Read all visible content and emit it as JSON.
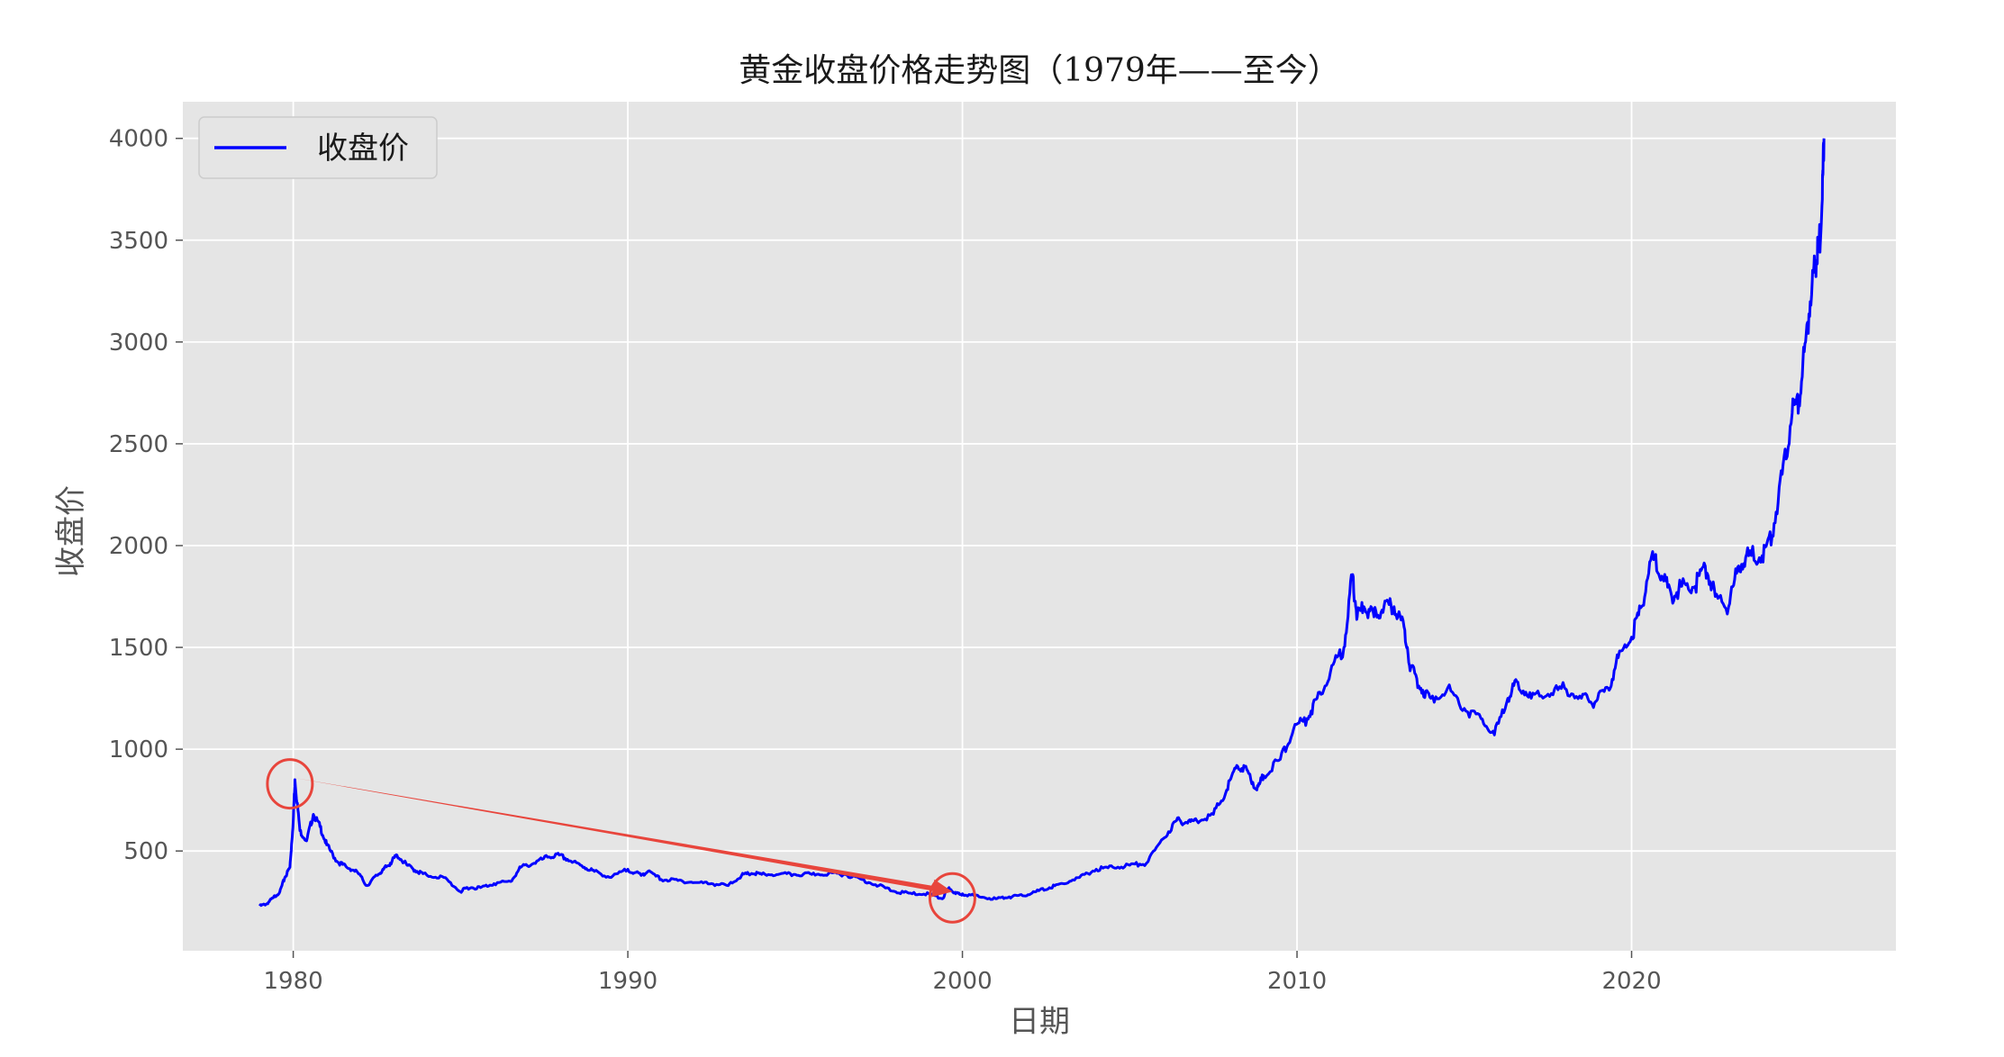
{
  "chart_data": {
    "type": "line",
    "title": "黄金收盘价格走势图（1979年——至今）",
    "xlabel": "日期",
    "ylabel": "收盘价",
    "xlim": [
      1976.7,
      2027.9
    ],
    "ylim": [
      10,
      4180
    ],
    "x_ticks": [
      1980,
      1990,
      2000,
      2010,
      2020
    ],
    "x_tick_labels": [
      "1980",
      "1990",
      "2000",
      "2010",
      "2020"
    ],
    "y_ticks": [
      500,
      1000,
      1500,
      2000,
      2500,
      3000,
      3500,
      4000
    ],
    "y_tick_labels": [
      "500",
      "1000",
      "1500",
      "2000",
      "2500",
      "3000",
      "3500",
      "4000"
    ],
    "grid": true,
    "legend": {
      "placement": "top-left",
      "entries": [
        "收盘价"
      ]
    },
    "colors": {
      "line": "#0000ff",
      "annotation": "#e8453c",
      "plot_bg": "#e5e5e5",
      "grid": "#ffffff"
    },
    "series": [
      {
        "name": "收盘价",
        "x": [
          1979.0,
          1979.2,
          1979.4,
          1979.6,
          1979.75,
          1979.9,
          1980.0,
          1980.05,
          1980.2,
          1980.4,
          1980.6,
          1980.8,
          1981.0,
          1981.3,
          1981.6,
          1981.9,
          1982.2,
          1982.5,
          1982.7,
          1982.9,
          1983.1,
          1983.4,
          1983.7,
          1984.0,
          1984.5,
          1985.0,
          1985.2,
          1985.6,
          1986.0,
          1986.5,
          1986.8,
          1987.2,
          1987.6,
          1987.95,
          1988.3,
          1988.7,
          1989.0,
          1989.5,
          1990.0,
          1990.4,
          1990.6,
          1991.0,
          1991.5,
          1992.0,
          1992.5,
          1993.0,
          1993.4,
          1993.7,
          1994.0,
          1994.5,
          1995.0,
          1995.5,
          1996.0,
          1996.5,
          1997.0,
          1997.5,
          1998.0,
          1998.5,
          1999.0,
          1999.4,
          1999.6,
          1999.8,
          2000.0,
          2000.5,
          2001.0,
          2001.4,
          2001.8,
          2002.2,
          2002.6,
          2003.0,
          2003.5,
          2004.0,
          2004.5,
          2005.0,
          2005.5,
          2006.0,
          2006.4,
          2006.7,
          2007.0,
          2007.5,
          2007.9,
          2008.2,
          2008.5,
          2008.8,
          2009.0,
          2009.5,
          2009.9,
          2010.3,
          2010.6,
          2011.0,
          2011.4,
          2011.65,
          2011.8,
          2012.0,
          2012.3,
          2012.6,
          2012.9,
          2013.2,
          2013.4,
          2013.7,
          2014.0,
          2014.5,
          2015.0,
          2015.5,
          2015.9,
          2016.3,
          2016.6,
          2017.0,
          2017.5,
          2018.0,
          2018.5,
          2018.9,
          2019.3,
          2019.6,
          2020.0,
          2020.3,
          2020.6,
          2020.9,
          2021.2,
          2021.5,
          2021.9,
          2022.2,
          2022.5,
          2022.9,
          2023.2,
          2023.5,
          2023.9,
          2024.2,
          2024.5,
          2024.8,
          2025.0,
          2025.2,
          2025.4,
          2025.5,
          2025.6,
          2025.7,
          2025.75
        ],
        "y": [
          230,
          240,
          270,
          300,
          370,
          420,
          650,
          850,
          600,
          550,
          680,
          620,
          530,
          450,
          420,
          400,
          330,
          380,
          410,
          440,
          480,
          430,
          400,
          380,
          370,
          300,
          320,
          320,
          340,
          350,
          420,
          440,
          470,
          480,
          450,
          420,
          400,
          370,
          410,
          380,
          400,
          360,
          355,
          345,
          340,
          330,
          380,
          390,
          385,
          385,
          385,
          385,
          390,
          385,
          360,
          330,
          300,
          290,
          290,
          265,
          320,
          290,
          290,
          275,
          265,
          275,
          280,
          300,
          320,
          340,
          370,
          410,
          420,
          430,
          440,
          560,
          650,
          640,
          650,
          680,
          800,
          920,
          900,
          800,
          870,
          950,
          1100,
          1150,
          1250,
          1380,
          1500,
          1850,
          1650,
          1700,
          1650,
          1700,
          1700,
          1600,
          1400,
          1300,
          1250,
          1300,
          1200,
          1150,
          1070,
          1250,
          1330,
          1250,
          1270,
          1300,
          1250,
          1230,
          1300,
          1450,
          1550,
          1700,
          1950,
          1850,
          1750,
          1800,
          1800,
          1900,
          1750,
          1700,
          1900,
          1950,
          1950,
          2050,
          2350,
          2650,
          2700,
          3000,
          3300,
          3400,
          3450,
          3700,
          4000
        ]
      }
    ],
    "annotations": [
      {
        "type": "circle",
        "x": 1979.9,
        "y": 830
      },
      {
        "type": "circle",
        "x": 1999.7,
        "y": 270
      },
      {
        "type": "arrow",
        "from": [
          1980.0,
          860
        ],
        "to": [
          1999.7,
          300
        ]
      }
    ]
  }
}
